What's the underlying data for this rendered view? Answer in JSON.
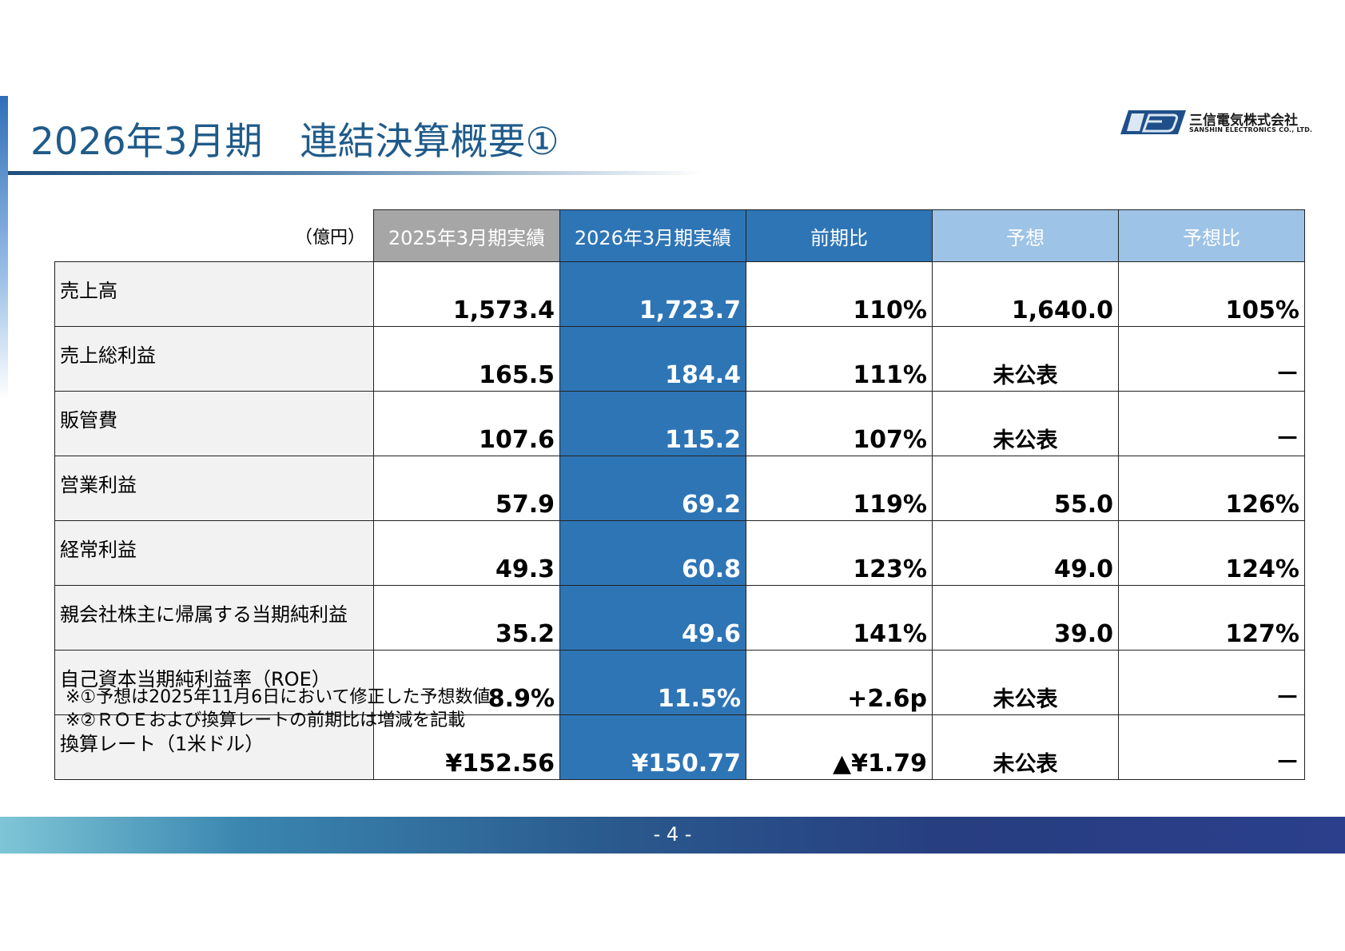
{
  "title": "2026年3月期　連結決算概要①",
  "logo": {
    "jp": "三信電気株式会社",
    "en": "SANSHIN ELECTRONICS CO., LTD."
  },
  "table": {
    "unit": "（億円）",
    "headers": [
      "2025年3月期実績",
      "2026年3月期実績",
      "前期比",
      "予想",
      "予想比"
    ],
    "rows": [
      {
        "label": "売上高",
        "prev": "1,573.4",
        "curr": "1,723.7",
        "yoy": "110%",
        "forecast": "1,640.0",
        "vs_forecast": "105%"
      },
      {
        "label": "売上総利益",
        "prev": "165.5",
        "curr": "184.4",
        "yoy": "111%",
        "forecast": "未公表",
        "vs_forecast": "－"
      },
      {
        "label": "販管費",
        "prev": "107.6",
        "curr": "115.2",
        "yoy": "107%",
        "forecast": "未公表",
        "vs_forecast": "－"
      },
      {
        "label": "営業利益",
        "prev": "57.9",
        "curr": "69.2",
        "yoy": "119%",
        "forecast": "55.0",
        "vs_forecast": "126%"
      },
      {
        "label": "経常利益",
        "prev": "49.3",
        "curr": "60.8",
        "yoy": "123%",
        "forecast": "49.0",
        "vs_forecast": "124%"
      },
      {
        "label": "親会社株主に帰属する当期純利益",
        "prev": "35.2",
        "curr": "49.6",
        "yoy": "141%",
        "forecast": "39.0",
        "vs_forecast": "127%"
      },
      {
        "label": "自己資本当期純利益率（ROE）",
        "prev": "8.9%",
        "curr": "11.5%",
        "yoy": "+2.6p",
        "forecast": "未公表",
        "vs_forecast": "－"
      },
      {
        "label": "換算レート（1米ドル）",
        "prev": "¥152.56",
        "curr": "¥150.77",
        "yoy": "▲¥1.79",
        "forecast": "未公表",
        "vs_forecast": "－"
      }
    ]
  },
  "notes": [
    "※①予想は2025年11月6日において修正した予想数値",
    "※②ＲＯＥおよび換算レートの前期比は増減を記載"
  ],
  "page_number": "- 4 -",
  "colors": {
    "title": "#1f5b8a",
    "header_prev": "#a6a6a6",
    "header_curr": "#2e75b6",
    "header_forecast": "#9dc3e6",
    "label_bg": "#f2f2f2"
  }
}
